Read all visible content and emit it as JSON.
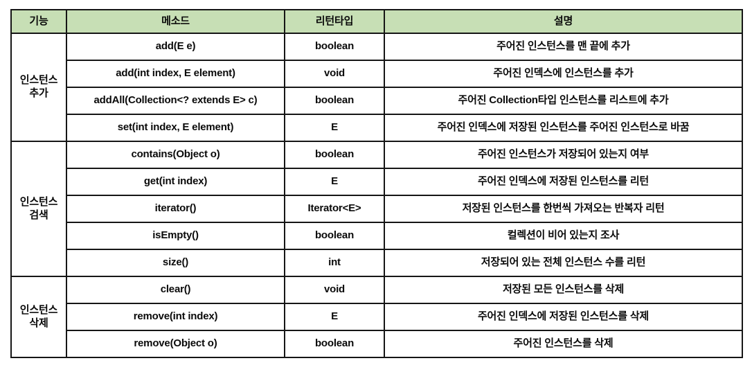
{
  "colors": {
    "header_bg": "#c7dfb5",
    "border": "#151515",
    "text": "#0a0a0a",
    "page_bg": "#ffffff"
  },
  "table": {
    "headers": {
      "function": "기능",
      "method": "메소드",
      "return_type": "리턴타입",
      "description": "설명"
    },
    "groups": [
      {
        "label_lines": [
          "인스턴스",
          "추가"
        ],
        "rows": [
          {
            "method": "add(E e)",
            "return_type": "boolean",
            "description": "주어진 인스턴스를 맨 끝에 추가"
          },
          {
            "method": "add(int index, E element)",
            "return_type": "void",
            "description": "주어진 인덱스에 인스턴스를 추가"
          },
          {
            "method": "addAll(Collection<? extends E> c)",
            "return_type": "boolean",
            "description": "주어진 Collection타입 인스턴스를 리스트에 추가"
          },
          {
            "method": "set(int index, E element)",
            "return_type": "E",
            "description": "주어진 인덱스에 저장된 인스턴스를 주어진 인스턴스로 바꿈"
          }
        ]
      },
      {
        "label_lines": [
          "인스턴스",
          "검색"
        ],
        "rows": [
          {
            "method": "contains(Object o)",
            "return_type": "boolean",
            "description": "주어진 인스턴스가 저장되어 있는지 여부"
          },
          {
            "method": "get(int index)",
            "return_type": "E",
            "description": "주어진 인덱스에 저장된 인스턴스를 리턴"
          },
          {
            "method": "iterator()",
            "return_type": "Iterator<E>",
            "description": "저장된 인스턴스를 한번씩 가져오는 반복자 리턴"
          },
          {
            "method": "isEmpty()",
            "return_type": "boolean",
            "description": "컬렉션이 비어 있는지 조사"
          },
          {
            "method": "size()",
            "return_type": "int",
            "description": "저장되어 있는 전체 인스턴스 수를 리턴"
          }
        ]
      },
      {
        "label_lines": [
          "인스턴스",
          "삭제"
        ],
        "rows": [
          {
            "method": "clear()",
            "return_type": "void",
            "description": "저장된 모든 인스턴스를 삭제"
          },
          {
            "method": "remove(int index)",
            "return_type": "E",
            "description": "주어진 인덱스에 저장된 인스턴스를 삭제"
          },
          {
            "method": "remove(Object o)",
            "return_type": "boolean",
            "description": "주어진 인스턴스를 삭제"
          }
        ]
      }
    ]
  }
}
